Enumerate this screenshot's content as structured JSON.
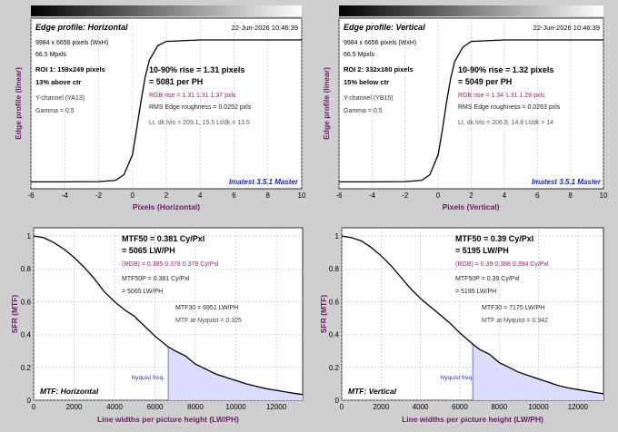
{
  "edge_panels": [
    {
      "title": "Edge profile: Horizontal",
      "date": "22-Jun-2026 10:46:39",
      "info": [
        "9984 x 6656 pixels (WxH)",
        "66.5 Mpxls"
      ],
      "roi": [
        "ROI 1:  159x249 pixels",
        "13% above ctr"
      ],
      "channel": "Y-channel  (YA13)",
      "gamma": "Gamma = 0.5",
      "rise": "10-90% rise = 1.31 pixels",
      "per_ph": "= 5081 per PH",
      "rgb": "RGB rise = 1.31  1.31  1.37 pxls",
      "rms": "RMS Edge roughness = 0.0252 pxls",
      "lt": "Lt, dk lvls = 209.1, 15.5   Lt/dk = 13.5",
      "brand": "Imatest 3.5.1 Master",
      "xlabel": "Pixels (Horizontal)",
      "ylabel": "Edge profile (linear)",
      "xticks": [
        "-6",
        "-4",
        "-2",
        "0",
        "2",
        "4",
        "6",
        "8",
        "10"
      ]
    },
    {
      "title": "Edge profile: Vertical",
      "date": "22-Jun-2026 10:46:39",
      "info": [
        "9984 x 6656 pixels (WxH)",
        "66.5 Mpxls"
      ],
      "roi": [
        "ROI 2:  332x180 pixels",
        "15% below ctr"
      ],
      "channel": "Y-channel  (YB15)",
      "gamma": "Gamma = 0.5",
      "rise": "10-90% rise = 1.32 pixels",
      "per_ph": "= 5049 per PH",
      "rgb": "RGB rise = 1.34  1.31  1.28 pxls",
      "rms": "RMS Edge roughness = 0.0263 pxls",
      "lt": "Lt, dk lvls = 206.9, 14.8   Lt/dk = 14",
      "brand": "Imatest 3.5.1 Master",
      "xlabel": "Pixels (Vertical)",
      "ylabel": "Edge profile (linear)",
      "xticks": [
        "-6",
        "-4",
        "-2",
        "0",
        "2",
        "4",
        "6",
        "8",
        "10"
      ]
    }
  ],
  "mtf_panels": [
    {
      "title": "MTF: Horizontal",
      "mtf50": "MTF50 = 0.381 Cy/Pxl",
      "lwph": "= 5065 LW/PH",
      "rgb": "(RGB) = 0.385  0.378  0.379 Cy/Pxl",
      "mtf50p": "MTF50P = 0.381 Cy/Pxl",
      "lwph_p": "= 5065 LW/PH",
      "mtf30": "MTF30 = 6951 LW/PH",
      "nyq": "MTF at Nyquist = 0.325",
      "nyq_label": "Nyquist freq.",
      "xlabel": "Line widths per picture height (LW/PH)",
      "ylabel": "SFR (MTF)",
      "xticks": [
        "0",
        "2000",
        "4000",
        "6000",
        "8000",
        "10000",
        "12000"
      ],
      "yticks": [
        "0",
        "0.2",
        "0.4",
        "0.6",
        "0.8",
        "1"
      ]
    },
    {
      "title": "MTF: Vertical",
      "mtf50": "MTF50 = 0.39 Cy/Pxl",
      "lwph": "= 5195 LW/PH",
      "rgb": "(RGB) = 0.39  0.388  0.394 Cy/Pxl",
      "mtf50p": "MTF50P = 0.39 Cy/Pxl",
      "lwph_p": "= 5195 LW/PH",
      "mtf30": "MTF30 = 7175 LW/PH",
      "nyq": "MTF at Nyquist = 0.342",
      "nyq_label": "Nyquist freq.",
      "xlabel": "Line widths per picture height (LW/PH)",
      "ylabel": "SFR (MTF)",
      "xticks": [
        "0",
        "2000",
        "4000",
        "6000",
        "8000",
        "10000",
        "12000"
      ],
      "yticks": [
        "0",
        "0.2",
        "0.4",
        "0.6",
        "0.8",
        "1"
      ]
    }
  ],
  "chart_data": [
    {
      "type": "line",
      "xlim": [
        -6,
        10
      ],
      "ylim": [
        0,
        1
      ],
      "x": [
        -6,
        -4,
        -2,
        -1,
        -0.5,
        0,
        0.25,
        0.5,
        0.75,
        1,
        1.5,
        2,
        4,
        6,
        8,
        10
      ],
      "series": [
        {
          "values": [
            0.01,
            0.01,
            0.012,
            0.02,
            0.06,
            0.2,
            0.38,
            0.57,
            0.74,
            0.86,
            0.96,
            0.99,
            1.0,
            1.0,
            1.0,
            1.0
          ]
        }
      ],
      "xlabel": "Pixels (Horizontal)",
      "ylabel": "Edge profile (linear)"
    },
    {
      "type": "line",
      "xlim": [
        -6,
        10
      ],
      "ylim": [
        0,
        1
      ],
      "x": [
        -6,
        -4,
        -2,
        -1,
        -0.5,
        0,
        0.25,
        0.5,
        0.75,
        1,
        1.5,
        2,
        4,
        6,
        8,
        10
      ],
      "series": [
        {
          "values": [
            0.01,
            0.01,
            0.012,
            0.02,
            0.06,
            0.2,
            0.37,
            0.56,
            0.73,
            0.85,
            0.95,
            0.99,
            1.0,
            1.0,
            1.0,
            1.0
          ]
        }
      ],
      "xlabel": "Pixels (Vertical)",
      "ylabel": "Edge profile (linear)"
    },
    {
      "type": "line",
      "xlim": [
        0,
        13300
      ],
      "ylim": [
        0,
        1.05
      ],
      "nyquist": 6656,
      "x": [
        0,
        500,
        1000,
        1500,
        2000,
        2500,
        3000,
        3500,
        4000,
        4500,
        5000,
        5065,
        5500,
        6000,
        6656,
        7000,
        7500,
        8000,
        8500,
        9000,
        9500,
        10000,
        10500,
        11000,
        11500,
        12000,
        12500,
        13000,
        13300
      ],
      "series": [
        {
          "values": [
            1.0,
            0.99,
            0.96,
            0.92,
            0.87,
            0.81,
            0.74,
            0.66,
            0.6,
            0.55,
            0.51,
            0.5,
            0.45,
            0.39,
            0.325,
            0.3,
            0.27,
            0.22,
            0.19,
            0.16,
            0.14,
            0.12,
            0.1,
            0.085,
            0.07,
            0.06,
            0.05,
            0.04,
            0.035
          ]
        }
      ],
      "xlabel": "Line widths per picture height (LW/PH)",
      "ylabel": "SFR (MTF)"
    },
    {
      "type": "line",
      "xlim": [
        0,
        13300
      ],
      "ylim": [
        0,
        1.05
      ],
      "nyquist": 6656,
      "x": [
        0,
        500,
        1000,
        1500,
        2000,
        2500,
        3000,
        3500,
        4000,
        4500,
        5000,
        5195,
        5500,
        6000,
        6656,
        7000,
        7500,
        8000,
        8500,
        9000,
        9500,
        10000,
        10500,
        11000,
        11500,
        12000,
        12500,
        13000,
        13300
      ],
      "series": [
        {
          "values": [
            1.0,
            0.99,
            0.97,
            0.93,
            0.88,
            0.82,
            0.75,
            0.68,
            0.62,
            0.57,
            0.52,
            0.5,
            0.47,
            0.41,
            0.342,
            0.31,
            0.28,
            0.23,
            0.2,
            0.17,
            0.15,
            0.13,
            0.11,
            0.09,
            0.075,
            0.065,
            0.055,
            0.045,
            0.04
          ]
        }
      ],
      "xlabel": "Line widths per picture height (LW/PH)",
      "ylabel": "SFR (MTF)"
    }
  ]
}
